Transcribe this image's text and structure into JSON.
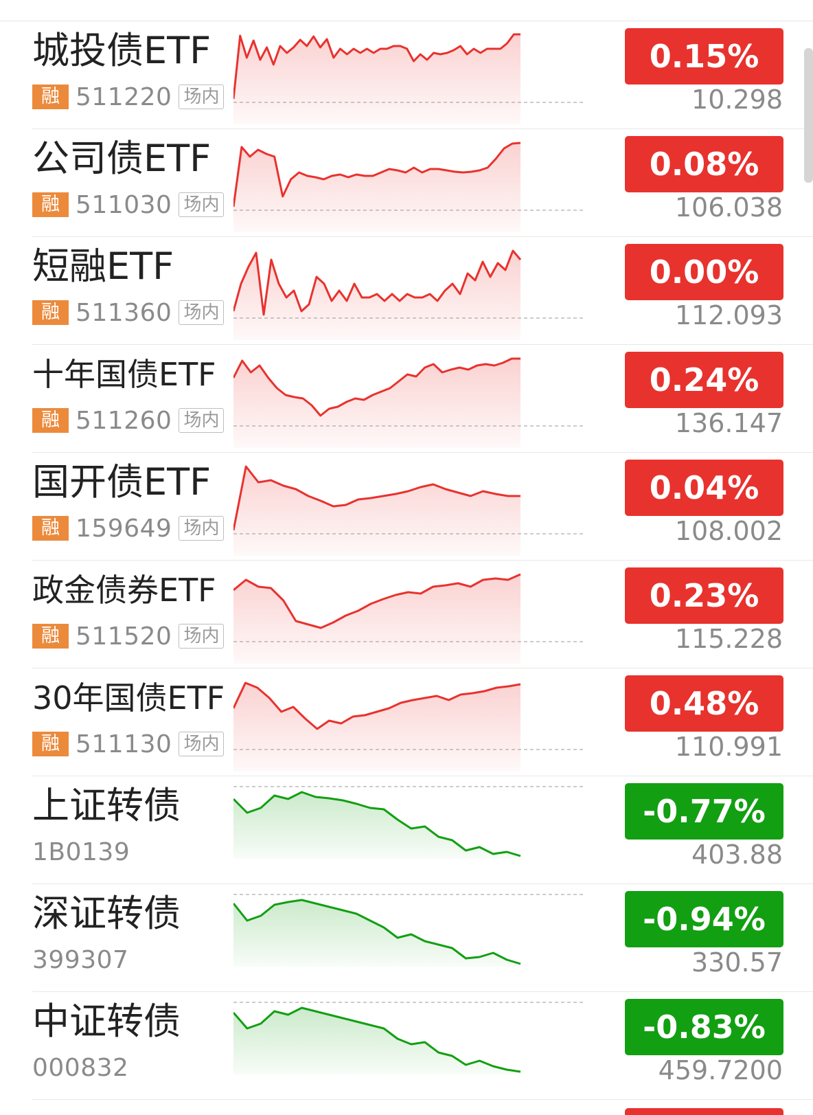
{
  "colors": {
    "up": "#e8322e",
    "down": "#129f12",
    "rong_badge": "#ec8a3c"
  },
  "items": [
    {
      "name": "城投债ETF",
      "tag": "融",
      "code": "511220",
      "venue": "场内",
      "change": "0.15%",
      "price": "10.298",
      "trend": "up",
      "spark": [
        0.05,
        0.97,
        0.65,
        0.9,
        0.62,
        0.8,
        0.55,
        0.82,
        0.72,
        0.8,
        0.91,
        0.82,
        0.96,
        0.8,
        0.92,
        0.65,
        0.78,
        0.7,
        0.78,
        0.72,
        0.78,
        0.72,
        0.78,
        0.78,
        0.82,
        0.82,
        0.78,
        0.6,
        0.7,
        0.62,
        0.72,
        0.7,
        0.72,
        0.76,
        0.82,
        0.7,
        0.78,
        0.72,
        0.78,
        0.78,
        0.78,
        0.86,
        0.99,
        0.99
      ]
    },
    {
      "name": "公司债ETF",
      "tag": "融",
      "code": "511030",
      "venue": "场内",
      "change": "0.08%",
      "price": "106.038",
      "trend": "up",
      "spark": [
        0.05,
        0.92,
        0.78,
        0.88,
        0.82,
        0.78,
        0.2,
        0.45,
        0.55,
        0.5,
        0.48,
        0.45,
        0.5,
        0.52,
        0.48,
        0.52,
        0.5,
        0.5,
        0.55,
        0.6,
        0.58,
        0.55,
        0.62,
        0.55,
        0.6,
        0.6,
        0.58,
        0.56,
        0.55,
        0.56,
        0.58,
        0.62,
        0.75,
        0.9,
        0.97,
        0.98
      ]
    },
    {
      "name": "短融ETF",
      "tag": "融",
      "code": "511360",
      "venue": "场内",
      "change": "0.00%",
      "price": "112.093",
      "trend": "up",
      "spark": [
        0.1,
        0.5,
        0.75,
        0.95,
        0.05,
        0.85,
        0.5,
        0.3,
        0.4,
        0.1,
        0.2,
        0.6,
        0.5,
        0.25,
        0.4,
        0.25,
        0.5,
        0.3,
        0.3,
        0.35,
        0.25,
        0.35,
        0.25,
        0.35,
        0.3,
        0.3,
        0.35,
        0.25,
        0.4,
        0.5,
        0.35,
        0.65,
        0.55,
        0.82,
        0.6,
        0.8,
        0.7,
        0.98,
        0.85
      ]
    },
    {
      "name": "十年国债ETF",
      "tag": "融",
      "code": "511260",
      "venue": "场内",
      "change": "0.24%",
      "price": "136.147",
      "trend": "up",
      "spark": [
        0.7,
        0.95,
        0.78,
        0.88,
        0.7,
        0.55,
        0.45,
        0.42,
        0.4,
        0.3,
        0.15,
        0.25,
        0.28,
        0.35,
        0.4,
        0.38,
        0.45,
        0.5,
        0.55,
        0.65,
        0.75,
        0.72,
        0.85,
        0.9,
        0.78,
        0.82,
        0.85,
        0.82,
        0.88,
        0.9,
        0.88,
        0.92,
        0.98,
        0.98
      ]
    },
    {
      "name": "国开债ETF",
      "tag": "融",
      "code": "159649",
      "venue": "场内",
      "change": "0.04%",
      "price": "108.002",
      "trend": "up",
      "spark": [
        0.05,
        0.98,
        0.75,
        0.78,
        0.7,
        0.65,
        0.55,
        0.48,
        0.4,
        0.42,
        0.5,
        0.52,
        0.55,
        0.58,
        0.62,
        0.68,
        0.72,
        0.65,
        0.6,
        0.55,
        0.62,
        0.58,
        0.55,
        0.55
      ]
    },
    {
      "name": "政金债券ETF",
      "tag": "融",
      "code": "511520",
      "venue": "场内",
      "change": "0.23%",
      "price": "115.228",
      "trend": "up",
      "spark": [
        0.75,
        0.9,
        0.8,
        0.78,
        0.6,
        0.3,
        0.25,
        0.2,
        0.28,
        0.38,
        0.45,
        0.55,
        0.62,
        0.68,
        0.72,
        0.7,
        0.8,
        0.82,
        0.85,
        0.8,
        0.9,
        0.92,
        0.9,
        0.98
      ]
    },
    {
      "name": "30年国债ETF",
      "tag": "融",
      "code": "511130",
      "venue": "场内",
      "change": "0.48%",
      "price": "110.991",
      "trend": "up",
      "spark": [
        0.6,
        0.97,
        0.9,
        0.75,
        0.55,
        0.62,
        0.45,
        0.3,
        0.42,
        0.38,
        0.48,
        0.5,
        0.55,
        0.6,
        0.68,
        0.72,
        0.75,
        0.78,
        0.72,
        0.8,
        0.82,
        0.85,
        0.9,
        0.92,
        0.95
      ]
    },
    {
      "name": "上证转债",
      "code": "1B0139",
      "change": "-0.77%",
      "price": "403.88",
      "trend": "down",
      "spark": [
        0.85,
        0.65,
        0.72,
        0.9,
        0.85,
        0.95,
        0.88,
        0.86,
        0.83,
        0.78,
        0.72,
        0.7,
        0.55,
        0.42,
        0.45,
        0.3,
        0.25,
        0.1,
        0.15,
        0.05,
        0.08,
        0.02
      ]
    },
    {
      "name": "深证转债",
      "code": "399307",
      "change": "-0.94%",
      "price": "330.57",
      "trend": "down",
      "spark": [
        0.9,
        0.65,
        0.72,
        0.88,
        0.92,
        0.95,
        0.9,
        0.85,
        0.8,
        0.75,
        0.65,
        0.55,
        0.4,
        0.45,
        0.35,
        0.3,
        0.25,
        0.1,
        0.12,
        0.18,
        0.08,
        0.02
      ]
    },
    {
      "name": "中证转债",
      "code": "000832",
      "change": "-0.83%",
      "price": "459.7200",
      "trend": "down",
      "spark": [
        0.88,
        0.65,
        0.72,
        0.9,
        0.85,
        0.95,
        0.9,
        0.85,
        0.8,
        0.75,
        0.7,
        0.65,
        0.5,
        0.42,
        0.45,
        0.3,
        0.25,
        0.12,
        0.18,
        0.1,
        0.05,
        0.02
      ]
    }
  ]
}
